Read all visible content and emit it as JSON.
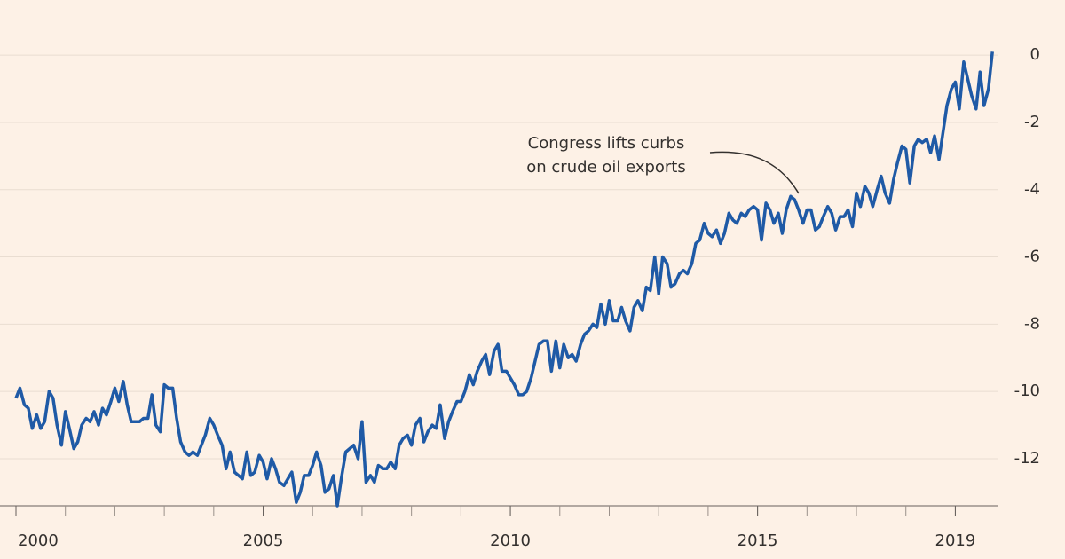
{
  "chart_data": {
    "type": "line",
    "annotation": [
      "Congress lifts curbs",
      "on crude oil exports"
    ],
    "x": [
      2000,
      2000.08,
      2000.17,
      2000.25,
      2000.33,
      2000.42,
      2000.5,
      2000.58,
      2000.67,
      2000.75,
      2000.83,
      2000.92,
      2001,
      2001.08,
      2001.17,
      2001.25,
      2001.33,
      2001.42,
      2001.5,
      2001.58,
      2001.67,
      2001.75,
      2001.83,
      2001.92,
      2002,
      2002.08,
      2002.17,
      2002.25,
      2002.33,
      2002.42,
      2002.5,
      2002.58,
      2002.67,
      2002.75,
      2002.83,
      2002.92,
      2003,
      2003.08,
      2003.17,
      2003.25,
      2003.33,
      2003.42,
      2003.5,
      2003.58,
      2003.67,
      2003.75,
      2003.83,
      2003.92,
      2004,
      2004.08,
      2004.17,
      2004.25,
      2004.33,
      2004.42,
      2004.5,
      2004.58,
      2004.67,
      2004.75,
      2004.83,
      2004.92,
      2005,
      2005.08,
      2005.17,
      2005.25,
      2005.33,
      2005.42,
      2005.5,
      2005.58,
      2005.67,
      2005.75,
      2005.83,
      2005.92,
      2006,
      2006.08,
      2006.17,
      2006.25,
      2006.33,
      2006.42,
      2006.5,
      2006.58,
      2006.67,
      2006.75,
      2006.83,
      2006.92,
      2007,
      2007.08,
      2007.17,
      2007.25,
      2007.33,
      2007.42,
      2007.5,
      2007.58,
      2007.67,
      2007.75,
      2007.83,
      2007.92,
      2008,
      2008.08,
      2008.17,
      2008.25,
      2008.33,
      2008.42,
      2008.5,
      2008.58,
      2008.67,
      2008.75,
      2008.83,
      2008.92,
      2009,
      2009.08,
      2009.17,
      2009.25,
      2009.33,
      2009.42,
      2009.5,
      2009.58,
      2009.67,
      2009.75,
      2009.83,
      2009.92,
      2010,
      2010.08,
      2010.17,
      2010.25,
      2010.33,
      2010.42,
      2010.5,
      2010.58,
      2010.67,
      2010.75,
      2010.83,
      2010.92,
      2011,
      2011.08,
      2011.17,
      2011.25,
      2011.33,
      2011.42,
      2011.5,
      2011.58,
      2011.67,
      2011.75,
      2011.83,
      2011.92,
      2012,
      2012.08,
      2012.17,
      2012.25,
      2012.33,
      2012.42,
      2012.5,
      2012.58,
      2012.67,
      2012.75,
      2012.83,
      2012.92,
      2013,
      2013.08,
      2013.17,
      2013.25,
      2013.33,
      2013.42,
      2013.5,
      2013.58,
      2013.67,
      2013.75,
      2013.83,
      2013.92,
      2014,
      2014.08,
      2014.17,
      2014.25,
      2014.33,
      2014.42,
      2014.5,
      2014.58,
      2014.67,
      2014.75,
      2014.83,
      2014.92,
      2015,
      2015.08,
      2015.17,
      2015.25,
      2015.33,
      2015.42,
      2015.5,
      2015.58,
      2015.67,
      2015.75,
      2015.83,
      2015.92,
      2016,
      2016.08,
      2016.17,
      2016.25,
      2016.33,
      2016.42,
      2016.5,
      2016.58,
      2016.67,
      2016.75,
      2016.83,
      2016.92,
      2017,
      2017.08,
      2017.17,
      2017.25,
      2017.33,
      2017.42,
      2017.5,
      2017.58,
      2017.67,
      2017.75,
      2017.83,
      2017.92,
      2018,
      2018.08,
      2018.17,
      2018.25,
      2018.33,
      2018.42,
      2018.5,
      2018.58,
      2018.67,
      2018.75,
      2018.83,
      2018.92,
      2019,
      2019.08,
      2019.17,
      2019.25,
      2019.33,
      2019.42,
      2019.5,
      2019.58,
      2019.67,
      2019.75
    ],
    "series": [
      {
        "color": "#1f5aa6",
        "values": [
          -10.2,
          -9.9,
          -10.4,
          -10.5,
          -11.1,
          -10.7,
          -11.1,
          -10.9,
          -10.0,
          -10.2,
          -11.0,
          -11.6,
          -10.6,
          -11.1,
          -11.7,
          -11.5,
          -11.0,
          -10.8,
          -10.9,
          -10.6,
          -11.0,
          -10.5,
          -10.7,
          -10.3,
          -9.9,
          -10.3,
          -9.7,
          -10.4,
          -10.9,
          -10.9,
          -10.9,
          -10.8,
          -10.8,
          -10.1,
          -11.0,
          -11.2,
          -9.8,
          -9.9,
          -9.9,
          -10.8,
          -11.5,
          -11.8,
          -11.9,
          -11.8,
          -11.9,
          -11.6,
          -11.3,
          -10.8,
          -11.0,
          -11.3,
          -11.6,
          -12.3,
          -11.8,
          -12.4,
          -12.5,
          -12.6,
          -11.8,
          -12.5,
          -12.4,
          -11.9,
          -12.1,
          -12.6,
          -12.0,
          -12.3,
          -12.7,
          -12.8,
          -12.6,
          -12.4,
          -13.3,
          -13.0,
          -12.5,
          -12.5,
          -12.2,
          -11.8,
          -12.2,
          -13.0,
          -12.9,
          -12.5,
          -13.4,
          -12.6,
          -11.8,
          -11.7,
          -11.6,
          -12.0,
          -10.9,
          -12.7,
          -12.5,
          -12.7,
          -12.2,
          -12.3,
          -12.3,
          -12.1,
          -12.3,
          -11.6,
          -11.4,
          -11.3,
          -11.6,
          -11.0,
          -10.8,
          -11.5,
          -11.2,
          -11.0,
          -11.1,
          -10.4,
          -11.4,
          -10.9,
          -10.6,
          -10.3,
          -10.3,
          -10.0,
          -9.5,
          -9.8,
          -9.4,
          -9.1,
          -8.9,
          -9.5,
          -8.8,
          -8.6,
          -9.4,
          -9.4,
          -9.6,
          -9.8,
          -10.1,
          -10.1,
          -10.0,
          -9.6,
          -9.1,
          -8.6,
          -8.5,
          -8.5,
          -9.4,
          -8.5,
          -9.3,
          -8.6,
          -9.0,
          -8.9,
          -9.1,
          -8.6,
          -8.3,
          -8.2,
          -8.0,
          -8.1,
          -7.4,
          -8.0,
          -7.3,
          -7.9,
          -7.9,
          -7.5,
          -7.9,
          -8.2,
          -7.5,
          -7.3,
          -7.6,
          -6.9,
          -7.0,
          -6.0,
          -7.1,
          -6.0,
          -6.2,
          -6.9,
          -6.8,
          -6.5,
          -6.4,
          -6.5,
          -6.2,
          -5.6,
          -5.5,
          -5.0,
          -5.3,
          -5.4,
          -5.2,
          -5.6,
          -5.3,
          -4.7,
          -4.9,
          -5.0,
          -4.7,
          -4.8,
          -4.6,
          -4.5,
          -4.6,
          -5.5,
          -4.4,
          -4.6,
          -5.0,
          -4.7,
          -5.3,
          -4.6,
          -4.2,
          -4.3,
          -4.6,
          -5.0,
          -4.6,
          -4.6,
          -5.2,
          -5.1,
          -4.8,
          -4.5,
          -4.7,
          -5.2,
          -4.8,
          -4.8,
          -4.6,
          -5.1,
          -4.1,
          -4.5,
          -3.9,
          -4.1,
          -4.5,
          -4.0,
          -3.6,
          -4.1,
          -4.4,
          -3.7,
          -3.2,
          -2.7,
          -2.8,
          -3.8,
          -2.7,
          -2.5,
          -2.6,
          -2.5,
          -2.9,
          -2.4,
          -3.1,
          -2.3,
          -1.5,
          -1.0,
          -0.8,
          -1.6,
          -0.2,
          -0.7,
          -1.2,
          -1.6,
          -0.5,
          -1.5,
          -1.0,
          0.1
        ]
      }
    ],
    "xlim": [
      2000,
      2019.8
    ],
    "xticks": [
      2000,
      2005,
      2010,
      2015,
      2019
    ],
    "xminorticks": [
      2000,
      2001,
      2002,
      2003,
      2004,
      2005,
      2006,
      2007,
      2008,
      2009,
      2010,
      2011,
      2012,
      2013,
      2014,
      2015,
      2016,
      2017,
      2018,
      2019
    ],
    "ylim": [
      -13.4,
      0.4
    ],
    "yticks": [
      0,
      -2,
      -4,
      -6,
      -8,
      -10,
      -12
    ],
    "grid": true
  }
}
